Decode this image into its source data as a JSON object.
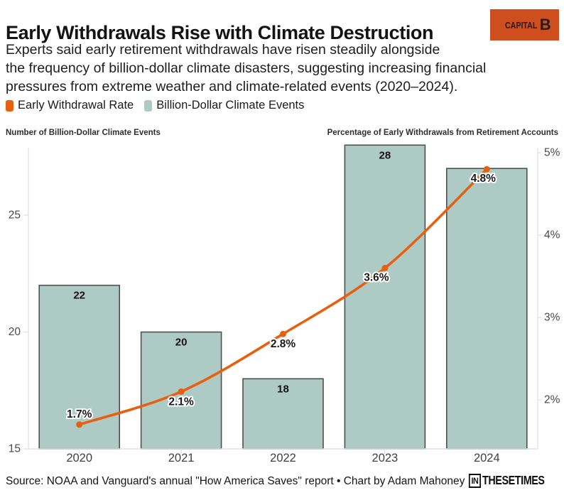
{
  "header": {
    "title": "Early Withdrawals Rise with Climate Destruction",
    "subtitle_lines": [
      "Experts said early retirement withdrawals have risen steadily alongside",
      "the frequency of billion-dollar climate disasters, suggesting increasing financial",
      "pressures from extreme weather and climate-related events (2020–2024)."
    ],
    "capital_b_logo": {
      "word": "CAPITAL",
      "b": "B",
      "bg_color": "#cf4e1e",
      "text_color": "#221d22"
    }
  },
  "legend": {
    "items": [
      {
        "label": "Early Withdrawal Rate",
        "color": "#e8600f"
      },
      {
        "label": "Billion-Dollar Climate Events",
        "color": "#aecac4"
      }
    ]
  },
  "axis_titles": {
    "left": "Number of Billion-Dollar Climate Events",
    "right": "Percentage of Early Withdrawals from Retirement Accounts"
  },
  "chart_data": {
    "type": "bar+line combo",
    "categories": [
      "2020",
      "2021",
      "2022",
      "2023",
      "2024"
    ],
    "series": [
      {
        "name": "Billion-Dollar Climate Events",
        "type": "bar",
        "axis": "left",
        "values": [
          22,
          20,
          18,
          28,
          27
        ],
        "value_labels": [
          "22",
          "20",
          "18",
          "28",
          ""
        ],
        "fill_color": "#aecac4",
        "border_color": "#4f4f4f"
      },
      {
        "name": "Early Withdrawal Rate",
        "type": "line",
        "axis": "right",
        "values": [
          1.7,
          2.1,
          2.8,
          3.6,
          4.8
        ],
        "value_labels": [
          "1.7%",
          "2.1%",
          "2.8%",
          "3.6%",
          "4.8%"
        ],
        "color": "#e8600f"
      }
    ],
    "left_axis": {
      "tick_values": [
        15,
        20,
        25
      ],
      "tick_labels": [
        "15",
        "20",
        "25"
      ],
      "min": 15
    },
    "right_axis": {
      "tick_values": [
        2,
        3,
        4,
        5
      ],
      "tick_labels": [
        "2%",
        "3%",
        "4%",
        "5%"
      ]
    },
    "grid": false,
    "legend_position": "top-left"
  },
  "colors": {
    "axis_line": "#e3e3e3",
    "tick_text": "#4a4a4a",
    "xlabel_text": "#3f3f3f",
    "bar_label_text": "#141414",
    "line_label_text": "#1a1a1a"
  },
  "footer": {
    "source": "Source: NOAA and Vanguard's annual \"How America Saves\" report • Chart by Adam Mahoney",
    "itt_logo_in": "IN",
    "itt_logo_rest": "THESETIMES"
  }
}
